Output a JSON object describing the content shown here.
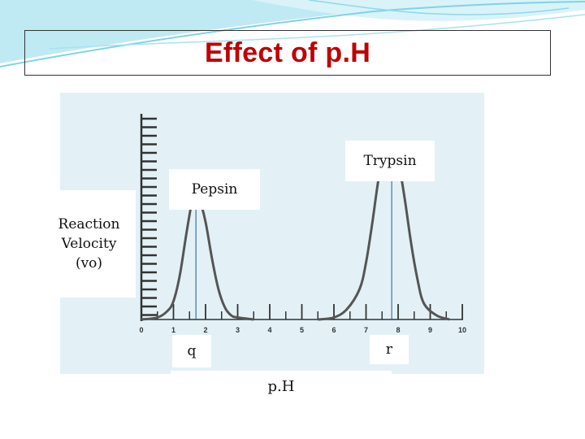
{
  "slide": {
    "title": "Effect of p.H",
    "colors": {
      "title": "#c00000",
      "plot_bg": "#e3f1f7",
      "header_wave": "#7fd3e8",
      "curve": "#555555"
    }
  },
  "chart_data": {
    "type": "line",
    "title": "",
    "xlabel": "p.H",
    "ylabel": "Reaction Velocity (vo)",
    "xlim": [
      0,
      10
    ],
    "x_ticks": [
      "0",
      "1",
      "2",
      "3",
      "4",
      "5",
      "6",
      "7",
      "8",
      "9",
      "10"
    ],
    "grid": false,
    "series": [
      {
        "name": "Pepsin",
        "x": [
          0.0,
          0.5,
          0.8,
          1.0,
          1.2,
          1.4,
          1.6,
          1.7,
          1.8,
          2.0,
          2.2,
          2.4,
          2.6,
          2.8,
          3.0,
          3.5
        ],
        "y": [
          0.0,
          0.01,
          0.04,
          0.09,
          0.22,
          0.42,
          0.6,
          0.63,
          0.6,
          0.48,
          0.3,
          0.15,
          0.06,
          0.02,
          0.01,
          0.0
        ],
        "peak_x": 1.7,
        "peak_marker": "q"
      },
      {
        "name": "Trypsin",
        "x": [
          5.5,
          6.0,
          6.4,
          6.8,
          7.0,
          7.2,
          7.4,
          7.6,
          7.8,
          8.0,
          8.2,
          8.4,
          8.6,
          8.8,
          9.2,
          9.6
        ],
        "y": [
          0.0,
          0.01,
          0.05,
          0.15,
          0.28,
          0.48,
          0.7,
          0.82,
          0.85,
          0.78,
          0.6,
          0.38,
          0.2,
          0.08,
          0.02,
          0.0
        ],
        "peak_x": 7.8,
        "peak_marker": "r"
      }
    ]
  }
}
